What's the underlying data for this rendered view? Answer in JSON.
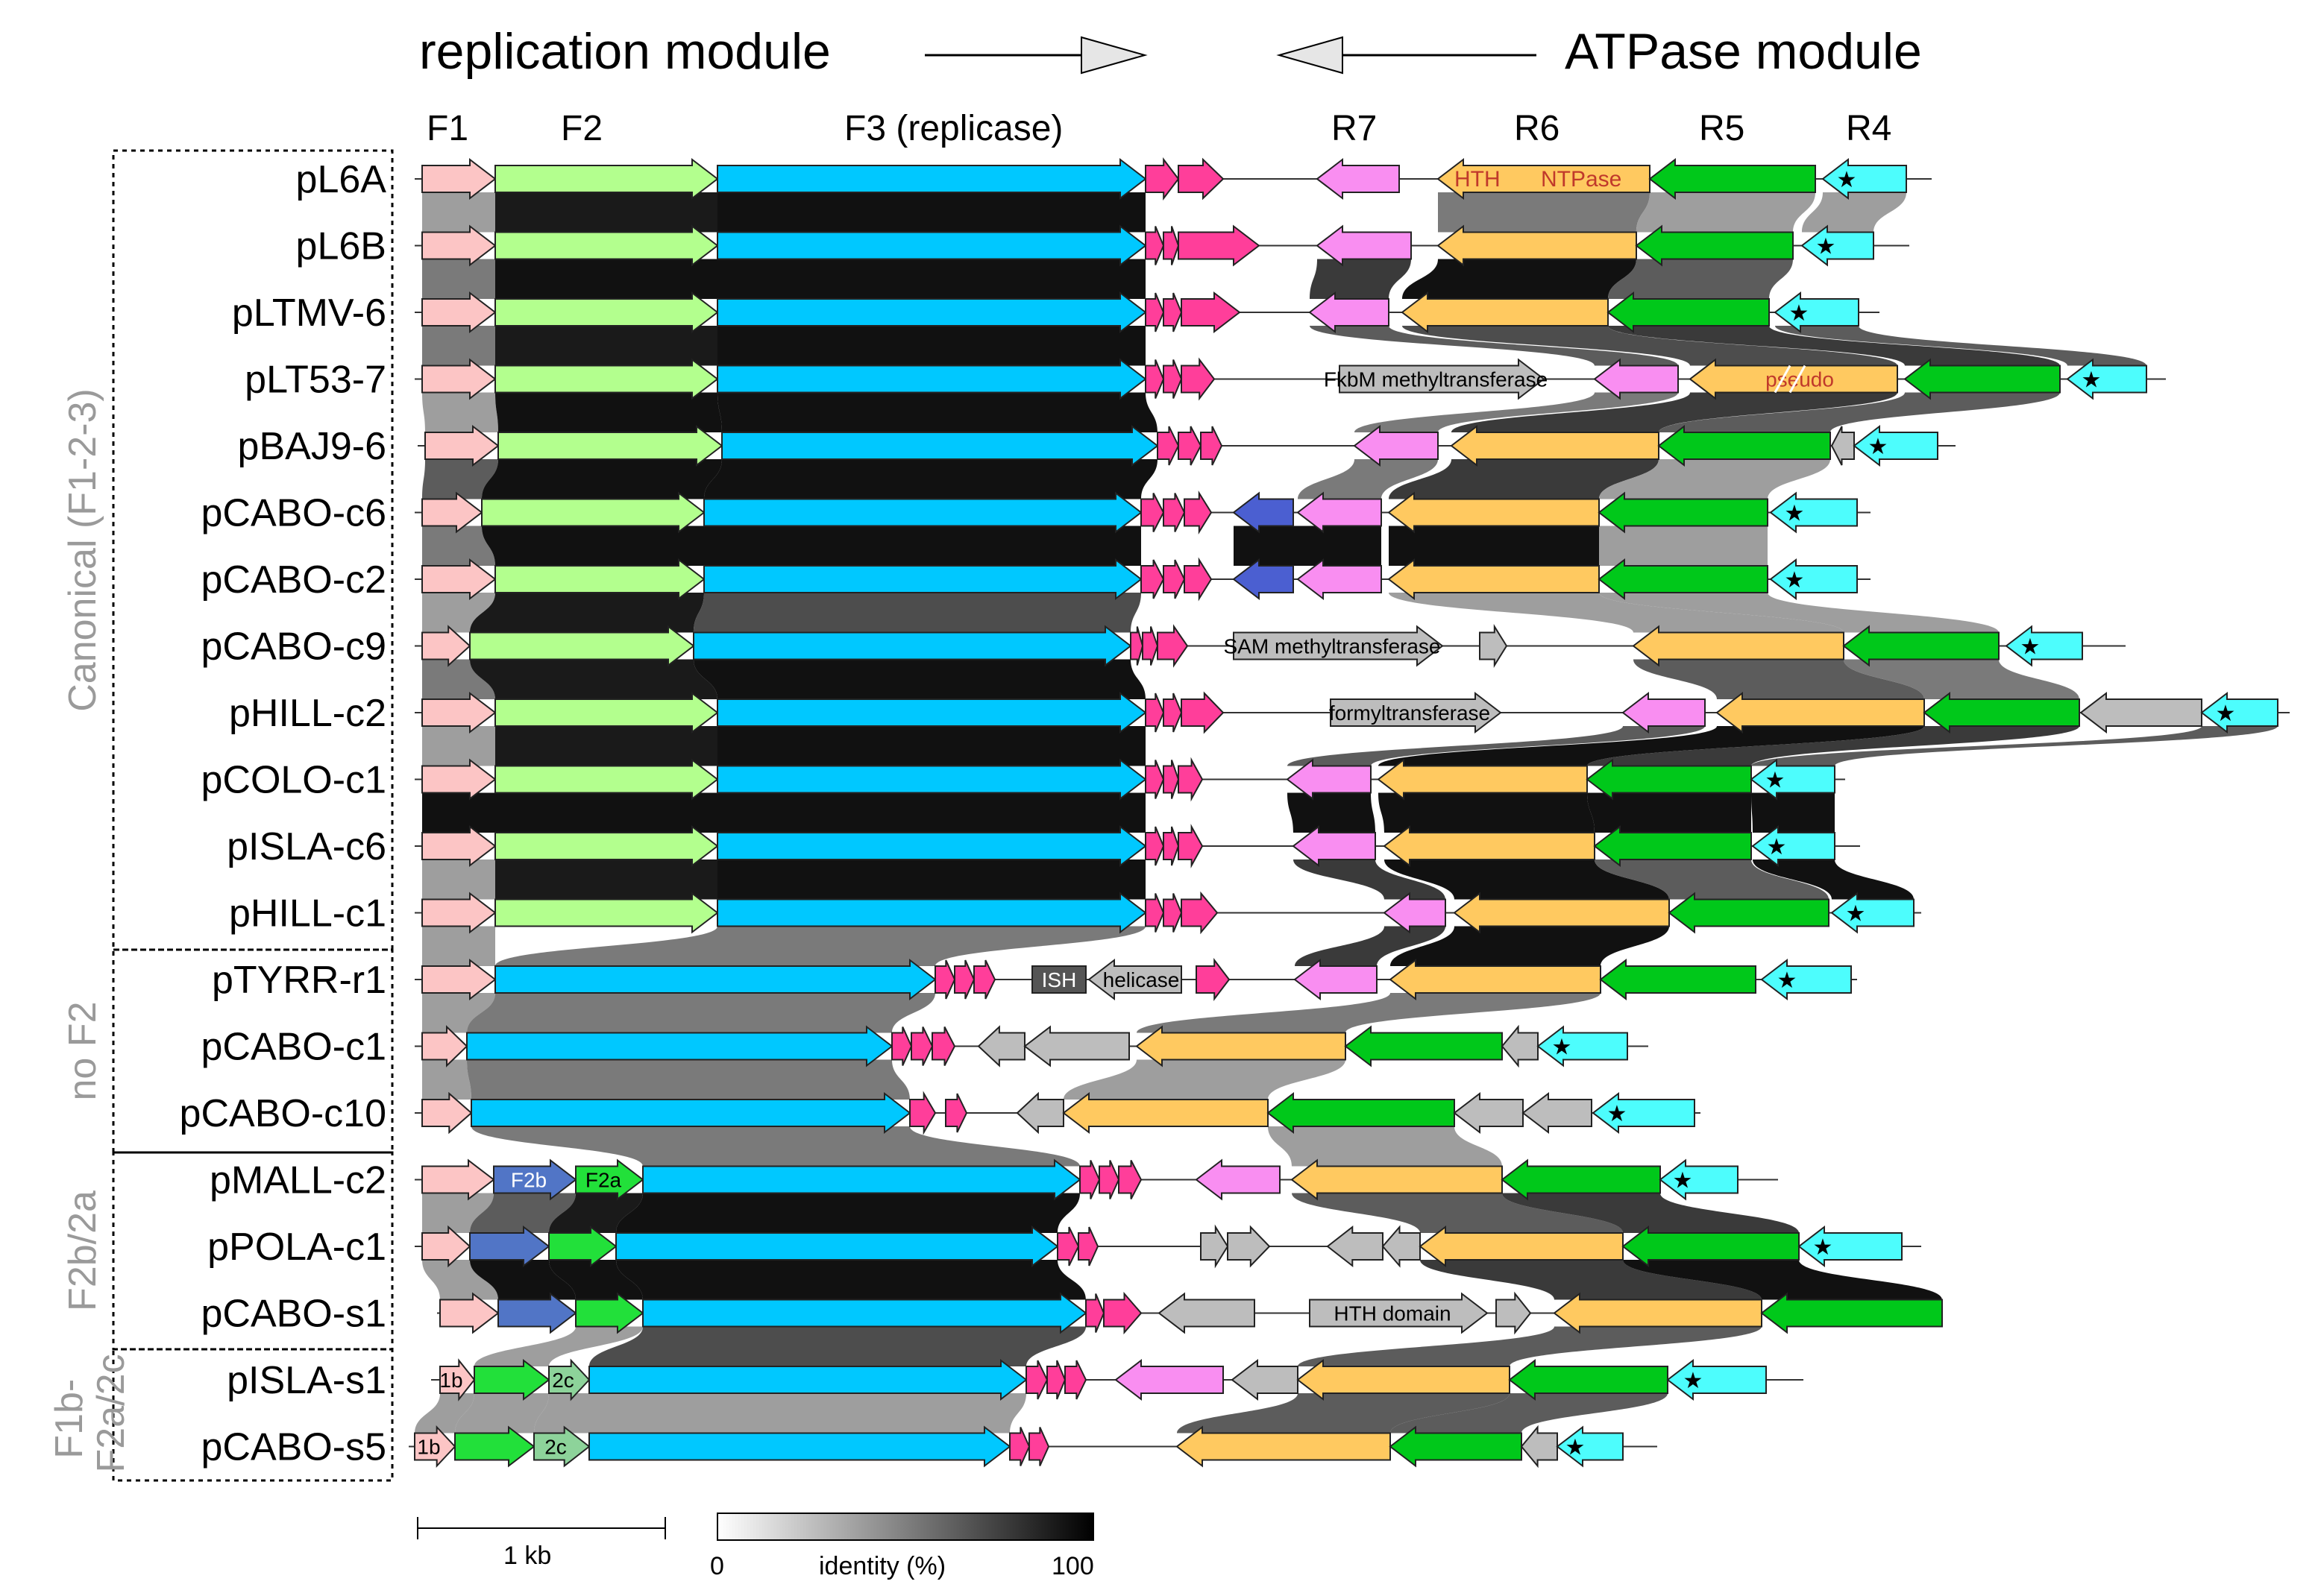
{
  "header": {
    "replication_label": "replication module",
    "atpase_label": "ATPase module"
  },
  "columns": [
    "F1",
    "F2",
    "F3 (replicase)",
    "R7",
    "R6",
    "R5",
    "R4"
  ],
  "groups": [
    {
      "label": "Canonical (F1-2-3)"
    },
    {
      "label": "no F2"
    },
    {
      "label": "F2b/2a"
    },
    {
      "label": "F1b-\nF2a/2c"
    }
  ],
  "plasmids": [
    "pL6A",
    "pL6B",
    "pLTMV-6",
    "pLT53-7",
    "pBAJ9-6",
    "pCABO-c6",
    "pCABO-c2",
    "pCABO-c9",
    "pHILL-c2",
    "pCOLO-c1",
    "pISLA-c6",
    "pHILL-c1",
    "pTYRR-r1",
    "pCABO-c1",
    "pCABO-c10",
    "pMALL-c2",
    "pPOLA-c1",
    "pCABO-s1",
    "pISLA-s1",
    "pCABO-s5"
  ],
  "gene_labels": {
    "hth": "HTH",
    "ntpase": "NTPase",
    "fkbm": "FkbM methyltransferase",
    "pseudo": "pseudo",
    "sam": "SAM methyltransferase",
    "formyl": "formyltransferase",
    "ish": "ISH",
    "helicase": "helicase",
    "f2b": "F2b",
    "f2a": "F2a",
    "hth_domain": "HTH domain",
    "f1b": "1b",
    "f2c": "2c",
    "star": "★"
  },
  "scale": {
    "kb_label": "1 kb",
    "identity_label": "identity (%)",
    "min_label": "0",
    "max_label": "100"
  },
  "colors": {
    "F1": "#fcc5c5",
    "F2": "#b3ff8e",
    "F3": "#00c8ff",
    "small_pink": "#ff3e9a",
    "R7": "#f98ef1",
    "R6": "#ffc960",
    "R5": "#00c81a",
    "R4": "#4dfdfd",
    "grey": "#bdbdbd",
    "blue_dark": "#4b5fd1",
    "f2b": "#5175c6",
    "f2a": "#22e03a",
    "f2c": "#8dd39a",
    "ish": "#555555"
  }
}
